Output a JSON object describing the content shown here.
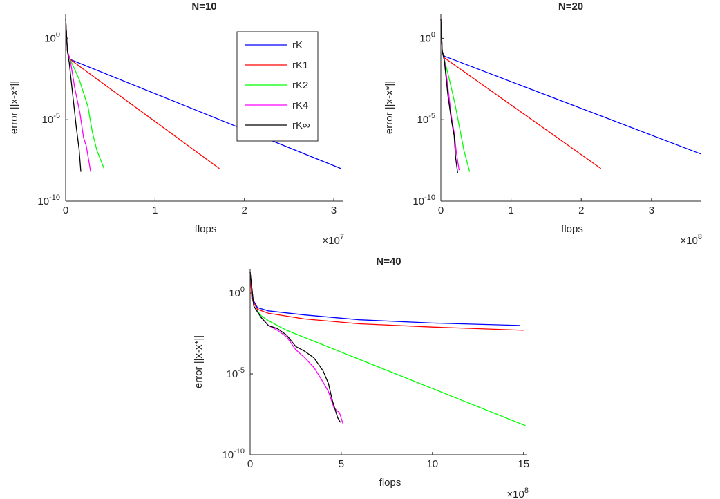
{
  "colors": {
    "rK": "#0000ff",
    "rK1": "#ff0000",
    "rK2": "#00ff00",
    "rK4": "#ff00ff",
    "rKinf": "#000000"
  },
  "chart_data": [
    {
      "type": "line",
      "title": "N=10",
      "xlabel": "flops",
      "ylabel": "error ||x-x*||",
      "x_exponent_base": "×10",
      "x_exponent": "7",
      "yscale": "log",
      "xlim": [
        0,
        3.1
      ],
      "ylim_exp": [
        -10,
        1.5
      ],
      "xticks": [
        0,
        1,
        2,
        3
      ],
      "yticks": [
        {
          "base": "10",
          "exp": "0",
          "v": 0
        },
        {
          "base": "10",
          "exp": "-5",
          "v": -5
        },
        {
          "base": "10",
          "exp": "-10",
          "v": -10
        }
      ],
      "legend": {
        "position": "top-right",
        "entries": [
          "rK",
          "rK1",
          "rK2",
          "rK4",
          "rK∞"
        ]
      },
      "series": [
        {
          "name": "rK",
          "color_key": "rK",
          "points": [
            [
              0,
              1.2
            ],
            [
              0.02,
              -0.8
            ],
            [
              0.05,
              -1.3
            ],
            [
              3.08,
              -8.0
            ]
          ]
        },
        {
          "name": "rK1",
          "color_key": "rK1",
          "points": [
            [
              0,
              1.2
            ],
            [
              0.02,
              -0.8
            ],
            [
              0.05,
              -1.3
            ],
            [
              1.72,
              -8.0
            ]
          ]
        },
        {
          "name": "rK2",
          "color_key": "rK2",
          "points": [
            [
              0,
              1.2
            ],
            [
              0.02,
              -0.8
            ],
            [
              0.05,
              -1.3
            ],
            [
              0.15,
              -2.5
            ],
            [
              0.25,
              -4.2
            ],
            [
              0.3,
              -5.8
            ],
            [
              0.35,
              -6.9
            ],
            [
              0.43,
              -8.0
            ]
          ]
        },
        {
          "name": "rK4",
          "color_key": "rK4",
          "points": [
            [
              0,
              1.2
            ],
            [
              0.02,
              -0.8
            ],
            [
              0.05,
              -1.3
            ],
            [
              0.1,
              -3.0
            ],
            [
              0.16,
              -4.6
            ],
            [
              0.2,
              -6.1
            ],
            [
              0.23,
              -6.6
            ],
            [
              0.28,
              -8.2
            ]
          ]
        },
        {
          "name": "rK∞",
          "color_key": "rKinf",
          "points": [
            [
              0,
              1.2
            ],
            [
              0.02,
              -0.8
            ],
            [
              0.04,
              -1.5
            ],
            [
              0.08,
              -3.5
            ],
            [
              0.12,
              -5.5
            ],
            [
              0.15,
              -6.8
            ],
            [
              0.17,
              -8.2
            ]
          ]
        }
      ]
    },
    {
      "type": "line",
      "title": "N=20",
      "xlabel": "flops",
      "ylabel": "error ||x-x*||",
      "x_exponent_base": "×10",
      "x_exponent": "8",
      "yscale": "log",
      "xlim": [
        0,
        3.7
      ],
      "ylim_exp": [
        -10,
        1.5
      ],
      "xticks": [
        0,
        1,
        2,
        3
      ],
      "yticks": [
        {
          "base": "10",
          "exp": "0",
          "v": 0
        },
        {
          "base": "10",
          "exp": "-5",
          "v": -5
        },
        {
          "base": "10",
          "exp": "-10",
          "v": -10
        }
      ],
      "series": [
        {
          "name": "rK",
          "color_key": "rK",
          "points": [
            [
              0,
              1.2
            ],
            [
              0.02,
              -0.8
            ],
            [
              0.05,
              -1.1
            ],
            [
              3.7,
              -7.1
            ]
          ]
        },
        {
          "name": "rK1",
          "color_key": "rK1",
          "points": [
            [
              0,
              1.2
            ],
            [
              0.02,
              -0.8
            ],
            [
              0.05,
              -1.2
            ],
            [
              2.28,
              -8.0
            ]
          ]
        },
        {
          "name": "rK2",
          "color_key": "rK2",
          "points": [
            [
              0,
              1.2
            ],
            [
              0.02,
              -0.8
            ],
            [
              0.05,
              -1.3
            ],
            [
              0.12,
              -2.5
            ],
            [
              0.2,
              -4.0
            ],
            [
              0.28,
              -5.8
            ],
            [
              0.33,
              -6.9
            ],
            [
              0.41,
              -8.2
            ]
          ]
        },
        {
          "name": "rK4",
          "color_key": "rK4",
          "points": [
            [
              0,
              1.2
            ],
            [
              0.02,
              -0.8
            ],
            [
              0.05,
              -1.3
            ],
            [
              0.1,
              -3.0
            ],
            [
              0.15,
              -4.8
            ],
            [
              0.19,
              -5.8
            ],
            [
              0.22,
              -7.0
            ],
            [
              0.26,
              -8.1
            ]
          ]
        },
        {
          "name": "rK∞",
          "color_key": "rKinf",
          "points": [
            [
              0,
              1.2
            ],
            [
              0.02,
              -0.8
            ],
            [
              0.05,
              -1.4
            ],
            [
              0.1,
              -3.5
            ],
            [
              0.15,
              -5.0
            ],
            [
              0.19,
              -6.0
            ],
            [
              0.21,
              -7.3
            ],
            [
              0.24,
              -8.3
            ]
          ]
        }
      ]
    },
    {
      "type": "line",
      "title": "N=40",
      "xlabel": "flops",
      "ylabel": "error ||x-x*||",
      "x_exponent_base": "×10",
      "x_exponent": "8",
      "yscale": "log",
      "xlim": [
        0,
        15.2
      ],
      "ylim_exp": [
        -10,
        1.5
      ],
      "xticks": [
        0,
        5,
        10,
        15
      ],
      "yticks": [
        {
          "base": "10",
          "exp": "0",
          "v": 0
        },
        {
          "base": "10",
          "exp": "-5",
          "v": -5
        },
        {
          "base": "10",
          "exp": "-10",
          "v": -10
        }
      ],
      "series": [
        {
          "name": "rK",
          "color_key": "rK",
          "points": [
            [
              0,
              1.3
            ],
            [
              0.1,
              -0.3
            ],
            [
              0.4,
              -0.9
            ],
            [
              1,
              -1.1
            ],
            [
              3,
              -1.35
            ],
            [
              6,
              -1.65
            ],
            [
              10,
              -1.85
            ],
            [
              14.8,
              -2.0
            ]
          ]
        },
        {
          "name": "rK1",
          "color_key": "rK1",
          "points": [
            [
              0,
              1.3
            ],
            [
              0.1,
              -0.4
            ],
            [
              0.4,
              -1.0
            ],
            [
              1,
              -1.25
            ],
            [
              3,
              -1.6
            ],
            [
              6,
              -1.9
            ],
            [
              10,
              -2.1
            ],
            [
              15,
              -2.3
            ]
          ]
        },
        {
          "name": "rK2",
          "color_key": "rK2",
          "points": [
            [
              0,
              1.3
            ],
            [
              0.2,
              -0.8
            ],
            [
              0.6,
              -1.4
            ],
            [
              1,
              -1.7
            ],
            [
              2,
              -2.3
            ],
            [
              15.1,
              -8.2
            ]
          ]
        },
        {
          "name": "rK4",
          "color_key": "rK4",
          "points": [
            [
              0,
              1.3
            ],
            [
              0.2,
              -0.8
            ],
            [
              0.6,
              -1.5
            ],
            [
              1,
              -2.0
            ],
            [
              1.5,
              -2.3
            ],
            [
              2,
              -2.7
            ],
            [
              2.5,
              -3.5
            ],
            [
              3,
              -4.0
            ],
            [
              3.5,
              -4.6
            ],
            [
              4,
              -5.5
            ],
            [
              4.3,
              -6.1
            ],
            [
              4.6,
              -7.1
            ],
            [
              4.9,
              -7.4
            ],
            [
              5.1,
              -8.1
            ]
          ]
        },
        {
          "name": "rK∞",
          "color_key": "rKinf",
          "points": [
            [
              0,
              1.3
            ],
            [
              0.2,
              -0.8
            ],
            [
              0.6,
              -1.5
            ],
            [
              1,
              -2.0
            ],
            [
              1.5,
              -2.2
            ],
            [
              2,
              -2.6
            ],
            [
              2.5,
              -3.3
            ],
            [
              3,
              -3.6
            ],
            [
              3.5,
              -4.0
            ],
            [
              4,
              -4.8
            ],
            [
              4.3,
              -5.6
            ],
            [
              4.5,
              -6.6
            ],
            [
              4.8,
              -7.7
            ],
            [
              4.95,
              -8.0
            ]
          ]
        }
      ]
    }
  ]
}
